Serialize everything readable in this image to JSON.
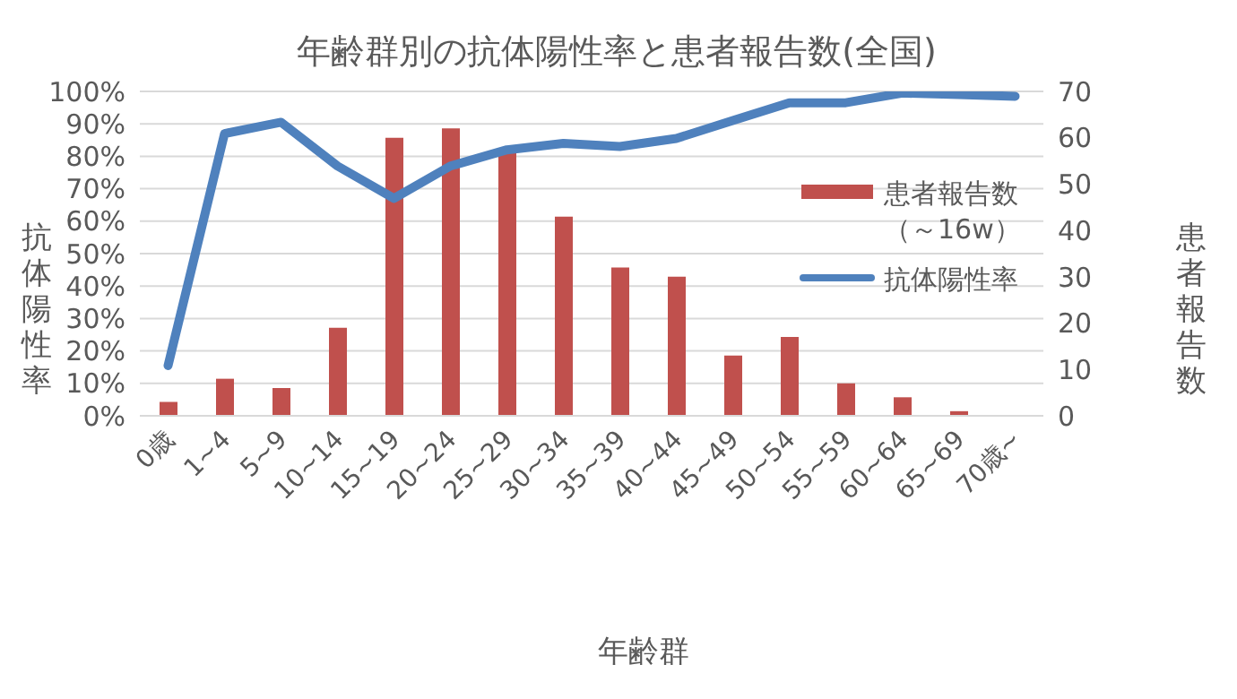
{
  "chart_data": {
    "type": "bar",
    "title": "年齢群別の抗体陽性率と患者報告数(全国)",
    "xlabel": "年齢群",
    "ylabel": "抗体陽性率",
    "y2label": "患者報告数",
    "categories": [
      "0歳",
      "1~4",
      "5~9",
      "10~14",
      "15~19",
      "20~24",
      "25~29",
      "30~34",
      "35~39",
      "40~44",
      "45~49",
      "50~54",
      "55~59",
      "60~64",
      "65~69",
      "70歳~"
    ],
    "series": [
      {
        "name": "患者報告数（～16w）",
        "axis": "y2",
        "color": "#c0504d",
        "values": [
          3,
          8,
          6,
          19,
          60,
          62,
          57,
          43,
          32,
          30,
          13,
          17,
          7,
          4,
          1,
          0
        ]
      },
      {
        "name": "抗体陽性率",
        "type": "line",
        "color": "#4f81bd",
        "values": [
          15.5,
          87,
          90.5,
          77,
          67,
          77,
          82,
          84,
          83,
          85.5,
          91,
          96.5,
          96.5,
          99.5,
          99,
          98.5
        ]
      }
    ],
    "ylim": [
      0,
      100
    ],
    "yticks": [
      {
        "value": 0,
        "label": "0%"
      },
      {
        "value": 10,
        "label": "10%"
      },
      {
        "value": 20,
        "label": "20%"
      },
      {
        "value": 30,
        "label": "30%"
      },
      {
        "value": 40,
        "label": "40%"
      },
      {
        "value": 50,
        "label": "50%"
      },
      {
        "value": 60,
        "label": "60%"
      },
      {
        "value": 70,
        "label": "70%"
      },
      {
        "value": 80,
        "label": "80%"
      },
      {
        "value": 90,
        "label": "90%"
      },
      {
        "value": 100,
        "label": "100%"
      }
    ],
    "y2lim": [
      0,
      70
    ],
    "y2ticks": [
      0,
      10,
      20,
      30,
      40,
      50,
      60,
      70
    ],
    "grid": "y",
    "legend": "top right",
    "marker": "none",
    "line_style": "solid"
  }
}
